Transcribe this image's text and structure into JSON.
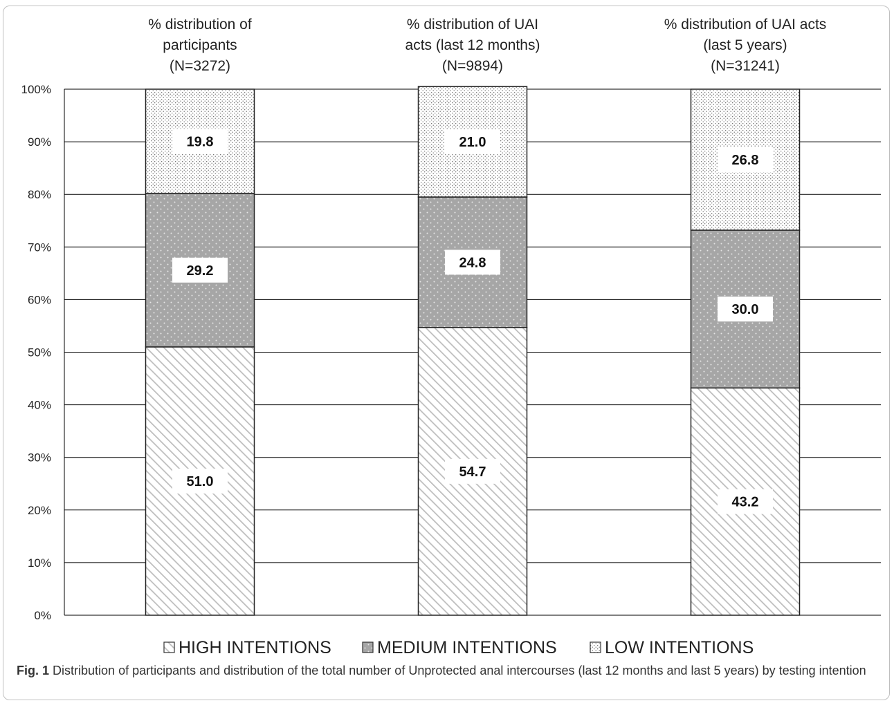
{
  "figure": {
    "fig_label": "Fig. 1",
    "caption": "Distribution of participants and distribution of the total number of Unprotected anal intercourses (last 12 months and last 5 years) by testing intention"
  },
  "chart_data": {
    "type": "bar",
    "stacked": true,
    "categories": [
      "% distribution of participants (N=3272)",
      "% distribution of UAI acts (last 12 months) (N=9894)",
      "% distribution of UAI acts (last 5 years) (N=31241)"
    ],
    "category_title_lines": [
      [
        "% distribution of",
        "participants",
        "(N=3272)"
      ],
      [
        "% distribution of UAI",
        "acts (last 12 months)",
        "(N=9894)"
      ],
      [
        "% distribution of UAI acts",
        "(last 5 years)",
        "(N=31241)"
      ]
    ],
    "series": [
      {
        "name": "HIGH INTENTIONS",
        "values": [
          51.0,
          54.7,
          43.2
        ],
        "labels": [
          "51.0",
          "54.7",
          "43.2"
        ],
        "pattern": "diagonal-hatch"
      },
      {
        "name": "MEDIUM INTENTIONS",
        "values": [
          29.2,
          24.8,
          30.0
        ],
        "labels": [
          "29.2",
          "24.8",
          "30.0"
        ],
        "pattern": "grey-dotted"
      },
      {
        "name": "LOW INTENTIONS",
        "values": [
          19.8,
          21.0,
          26.8
        ],
        "labels": [
          "19.8",
          "21.0",
          "26.8"
        ],
        "pattern": "fine-dots"
      }
    ],
    "y_ticks": [
      "0%",
      "10%",
      "20%",
      "30%",
      "40%",
      "50%",
      "60%",
      "70%",
      "80%",
      "90%",
      "100%"
    ],
    "ylim": [
      0,
      100
    ],
    "grid": true,
    "legend_position": "bottom",
    "colors": {
      "medium_fill": "#a6a6a6",
      "hatch": "#bdbdbd",
      "outline": "#222222"
    }
  }
}
